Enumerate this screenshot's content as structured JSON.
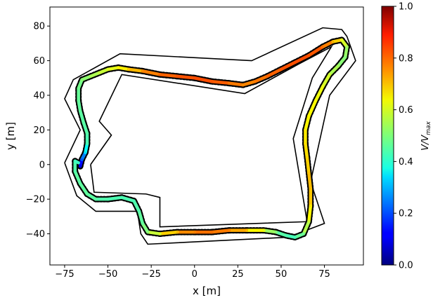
{
  "chart_data": {
    "type": "scatter",
    "title": "",
    "xlabel": "x [m]",
    "ylabel": "y [m]",
    "xlim": [
      -83.5,
      97.5
    ],
    "ylim": [
      -58,
      91
    ],
    "xticks": [
      -75,
      -50,
      -25,
      0,
      25,
      50,
      75
    ],
    "yticks": [
      -40,
      -20,
      0,
      20,
      40,
      60,
      80
    ],
    "xtick_labels": [
      "−75",
      "−50",
      "−25",
      "0",
      "25",
      "50",
      "75"
    ],
    "ytick_labels": [
      "−40",
      "−20",
      "0",
      "20",
      "40",
      "60",
      "80"
    ],
    "grid": false,
    "legend": "none",
    "colorbar": {
      "label": "V/V_max",
      "colormap": "jet",
      "range": [
        0.0,
        1.0
      ],
      "ticks": [
        0.0,
        0.2,
        0.4,
        0.6,
        0.8,
        1.0
      ],
      "tick_labels": [
        "0.0",
        "0.2",
        "0.4",
        "0.6",
        "0.8",
        "1.0"
      ]
    },
    "outer_boundary": [
      [
        -75,
        1
      ],
      [
        -68,
        -18
      ],
      [
        -57,
        -27
      ],
      [
        -33,
        -27
      ],
      [
        -31,
        -40
      ],
      [
        -27,
        -46
      ],
      [
        54,
        -42
      ],
      [
        75,
        -34
      ],
      [
        67,
        -10
      ],
      [
        78,
        40
      ],
      [
        93,
        60
      ],
      [
        88,
        74
      ],
      [
        85,
        78
      ],
      [
        74,
        79
      ],
      [
        33,
        60
      ],
      [
        -43,
        64
      ],
      [
        -70,
        49
      ],
      [
        -75,
        38
      ],
      [
        -66,
        20
      ],
      [
        -75,
        1
      ]
    ],
    "inner_boundary": [
      [
        -60,
        0
      ],
      [
        -58,
        -16
      ],
      [
        -28,
        -17
      ],
      [
        -20,
        -19
      ],
      [
        -20,
        -36
      ],
      [
        65,
        -33
      ],
      [
        57,
        15
      ],
      [
        68,
        50
      ],
      [
        79,
        68
      ],
      [
        60,
        58
      ],
      [
        29,
        41
      ],
      [
        -42,
        52
      ],
      [
        -55,
        25
      ],
      [
        -48,
        17
      ],
      [
        -60,
        0
      ]
    ],
    "racing_line": [
      {
        "x": -66,
        "y": -1,
        "v": 0.08
      },
      {
        "x": -65,
        "y": 3,
        "v": 0.18
      },
      {
        "x": -63,
        "y": 7,
        "v": 0.32
      },
      {
        "x": -62,
        "y": 12,
        "v": 0.44
      },
      {
        "x": -62,
        "y": 18,
        "v": 0.46
      },
      {
        "x": -64,
        "y": 24,
        "v": 0.46
      },
      {
        "x": -66,
        "y": 31,
        "v": 0.47
      },
      {
        "x": -67,
        "y": 37,
        "v": 0.47
      },
      {
        "x": -67,
        "y": 44,
        "v": 0.48
      },
      {
        "x": -65,
        "y": 49,
        "v": 0.5
      },
      {
        "x": -60,
        "y": 51,
        "v": 0.53
      },
      {
        "x": -55,
        "y": 53,
        "v": 0.56
      },
      {
        "x": -50,
        "y": 55,
        "v": 0.58
      },
      {
        "x": -44,
        "y": 56,
        "v": 0.62
      },
      {
        "x": -38,
        "y": 55,
        "v": 0.66
      },
      {
        "x": -30,
        "y": 54,
        "v": 0.73
      },
      {
        "x": -20,
        "y": 52,
        "v": 0.77
      },
      {
        "x": -10,
        "y": 51,
        "v": 0.79
      },
      {
        "x": 0,
        "y": 50,
        "v": 0.8
      },
      {
        "x": 10,
        "y": 48,
        "v": 0.8
      },
      {
        "x": 20,
        "y": 47,
        "v": 0.77
      },
      {
        "x": 28,
        "y": 46,
        "v": 0.74
      },
      {
        "x": 35,
        "y": 48,
        "v": 0.75
      },
      {
        "x": 42,
        "y": 51,
        "v": 0.77
      },
      {
        "x": 50,
        "y": 55,
        "v": 0.79
      },
      {
        "x": 58,
        "y": 59,
        "v": 0.8
      },
      {
        "x": 66,
        "y": 63,
        "v": 0.8
      },
      {
        "x": 74,
        "y": 68,
        "v": 0.78
      },
      {
        "x": 80,
        "y": 71,
        "v": 0.72
      },
      {
        "x": 85,
        "y": 72,
        "v": 0.62
      },
      {
        "x": 88,
        "y": 68,
        "v": 0.55
      },
      {
        "x": 87,
        "y": 62,
        "v": 0.5
      },
      {
        "x": 83,
        "y": 57,
        "v": 0.52
      },
      {
        "x": 78,
        "y": 52,
        "v": 0.57
      },
      {
        "x": 74,
        "y": 45,
        "v": 0.6
      },
      {
        "x": 70,
        "y": 37,
        "v": 0.62
      },
      {
        "x": 66,
        "y": 28,
        "v": 0.63
      },
      {
        "x": 64,
        "y": 20,
        "v": 0.64
      },
      {
        "x": 64,
        "y": 12,
        "v": 0.65
      },
      {
        "x": 65,
        "y": 4,
        "v": 0.66
      },
      {
        "x": 66,
        "y": -5,
        "v": 0.68
      },
      {
        "x": 67,
        "y": -14,
        "v": 0.7
      },
      {
        "x": 67,
        "y": -24,
        "v": 0.66
      },
      {
        "x": 66,
        "y": -33,
        "v": 0.6
      },
      {
        "x": 63,
        "y": -40,
        "v": 0.5
      },
      {
        "x": 58,
        "y": -42,
        "v": 0.45
      },
      {
        "x": 53,
        "y": -41,
        "v": 0.44
      },
      {
        "x": 47,
        "y": -39,
        "v": 0.48
      },
      {
        "x": 40,
        "y": -38,
        "v": 0.58
      },
      {
        "x": 30,
        "y": -38,
        "v": 0.68
      },
      {
        "x": 20,
        "y": -38,
        "v": 0.74
      },
      {
        "x": 10,
        "y": -39,
        "v": 0.77
      },
      {
        "x": 0,
        "y": -39,
        "v": 0.76
      },
      {
        "x": -10,
        "y": -39,
        "v": 0.72
      },
      {
        "x": -20,
        "y": -40,
        "v": 0.62
      },
      {
        "x": -27,
        "y": -39,
        "v": 0.52
      },
      {
        "x": -30,
        "y": -34,
        "v": 0.48
      },
      {
        "x": -32,
        "y": -27,
        "v": 0.46
      },
      {
        "x": -35,
        "y": -21,
        "v": 0.45
      },
      {
        "x": -42,
        "y": -19,
        "v": 0.45
      },
      {
        "x": -50,
        "y": -20,
        "v": 0.45
      },
      {
        "x": -57,
        "y": -20,
        "v": 0.46
      },
      {
        "x": -62,
        "y": -17,
        "v": 0.47
      },
      {
        "x": -66,
        "y": -11,
        "v": 0.47
      },
      {
        "x": -69,
        "y": -4,
        "v": 0.46
      },
      {
        "x": -69,
        "y": 2,
        "v": 0.45
      },
      {
        "x": -67,
        "y": 1,
        "v": 0.42
      }
    ]
  }
}
